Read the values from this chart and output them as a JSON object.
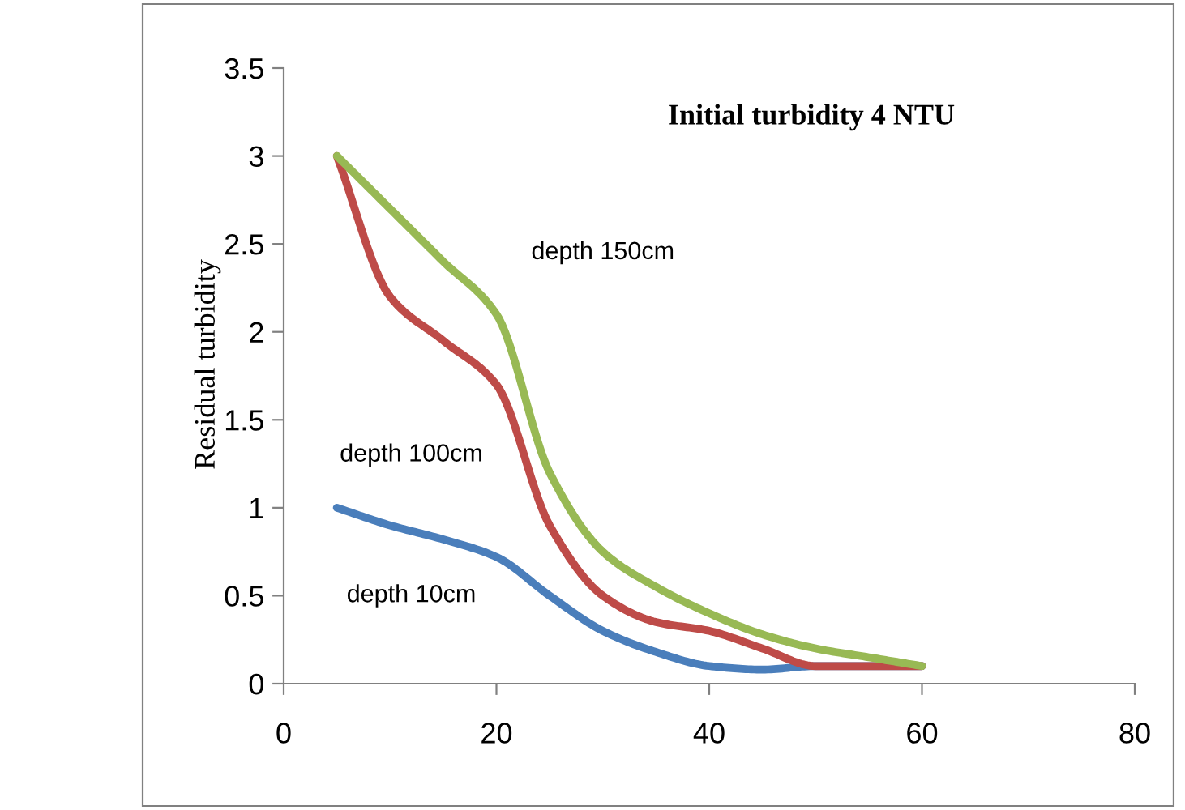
{
  "chart_data": {
    "type": "line",
    "title": "Initial turbidity 4 NTU",
    "ylabel": "Residual turbidity",
    "x": [
      5,
      10,
      15,
      20,
      25,
      30,
      35,
      40,
      45,
      50,
      55,
      60
    ],
    "series": [
      {
        "name": "depth 10cm",
        "color": "#4a7ebb",
        "values": [
          1.0,
          0.9,
          0.82,
          0.72,
          0.5,
          0.3,
          0.18,
          0.1,
          0.08,
          0.1,
          0.1,
          0.1
        ]
      },
      {
        "name": "depth 100cm",
        "color": "#be4b48",
        "values": [
          3.0,
          2.2,
          1.95,
          1.7,
          0.9,
          0.5,
          0.35,
          0.3,
          0.2,
          0.1,
          0.1,
          0.1
        ]
      },
      {
        "name": "depth 150cm",
        "color": "#98b954",
        "values": [
          3.0,
          2.7,
          2.4,
          2.1,
          1.2,
          0.75,
          0.55,
          0.4,
          0.28,
          0.2,
          0.15,
          0.1
        ]
      }
    ],
    "xlim": [
      0,
      80
    ],
    "xticks": [
      0,
      20,
      40,
      60,
      80
    ],
    "ylim": [
      0,
      3.5
    ],
    "yticks": [
      0,
      0.5,
      1,
      1.5,
      2,
      2.5,
      3,
      3.5
    ],
    "grid": false,
    "legend": false,
    "marker": "none",
    "line_style": "solid"
  }
}
